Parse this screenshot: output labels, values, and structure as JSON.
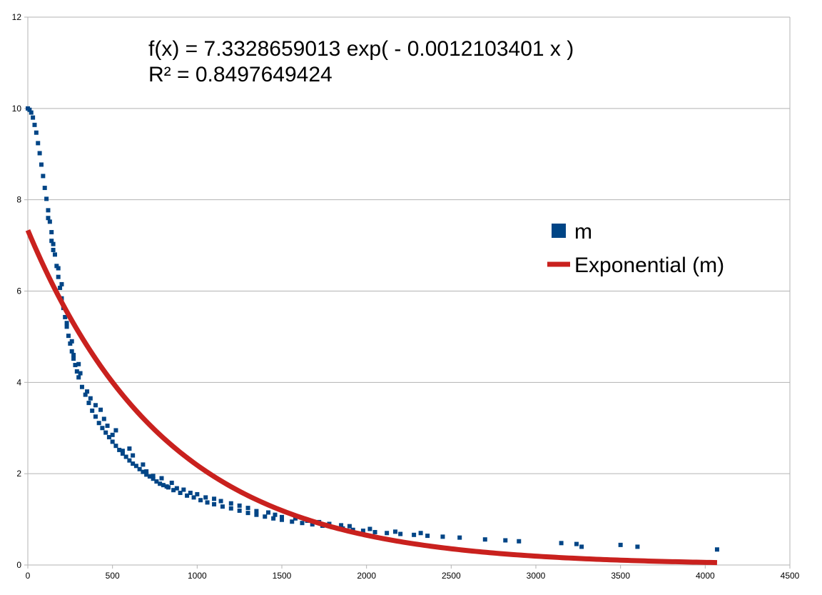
{
  "chart_data": {
    "type": "scatter",
    "title": "",
    "xlabel": "",
    "ylabel": "",
    "xlim": [
      0,
      4500
    ],
    "ylim": [
      0,
      12
    ],
    "x_ticks": [
      "0",
      "500",
      "1000",
      "1500",
      "2000",
      "2500",
      "3000",
      "3500",
      "4000",
      "4500"
    ],
    "y_ticks": [
      "0",
      "2",
      "4",
      "6",
      "8",
      "10",
      "12"
    ],
    "grid": "horizontal",
    "legend_position": "right",
    "colors": {
      "series": "#004586",
      "trend": "#c9211e",
      "grid": "#b3b3b3"
    },
    "equation": "f(x) = 7.3328659013 exp( - 0.0012103401 x )",
    "r_squared": "R² = 0.8497649424",
    "series": [
      {
        "name": "m",
        "points": [
          [
            0,
            10.0
          ],
          [
            10,
            9.97
          ],
          [
            20,
            9.91
          ],
          [
            30,
            9.8
          ],
          [
            40,
            9.64
          ],
          [
            50,
            9.47
          ],
          [
            60,
            9.24
          ],
          [
            70,
            9.02
          ],
          [
            80,
            8.77
          ],
          [
            90,
            8.52
          ],
          [
            100,
            8.26
          ],
          [
            110,
            8.02
          ],
          [
            120,
            7.77
          ],
          [
            130,
            7.52
          ],
          [
            140,
            7.29
          ],
          [
            150,
            7.03
          ],
          [
            160,
            6.8
          ],
          [
            170,
            6.55
          ],
          [
            180,
            6.31
          ],
          [
            190,
            6.07
          ],
          [
            200,
            5.84
          ],
          [
            210,
            5.63
          ],
          [
            220,
            5.43
          ],
          [
            230,
            5.22
          ],
          [
            240,
            5.02
          ],
          [
            250,
            4.85
          ],
          [
            260,
            4.68
          ],
          [
            270,
            4.52
          ],
          [
            280,
            4.38
          ],
          [
            290,
            4.24
          ],
          [
            300,
            4.11
          ],
          [
            320,
            3.9
          ],
          [
            340,
            3.73
          ],
          [
            360,
            3.55
          ],
          [
            380,
            3.38
          ],
          [
            400,
            3.25
          ],
          [
            420,
            3.11
          ],
          [
            440,
            3.0
          ],
          [
            460,
            2.9
          ],
          [
            480,
            2.8
          ],
          [
            500,
            2.7
          ],
          [
            520,
            2.61
          ],
          [
            540,
            2.52
          ],
          [
            560,
            2.44
          ],
          [
            580,
            2.37
          ],
          [
            600,
            2.29
          ],
          [
            620,
            2.22
          ],
          [
            640,
            2.17
          ],
          [
            660,
            2.1
          ],
          [
            680,
            2.04
          ],
          [
            700,
            1.98
          ],
          [
            720,
            1.94
          ],
          [
            740,
            1.89
          ],
          [
            760,
            1.83
          ],
          [
            780,
            1.78
          ],
          [
            800,
            1.75
          ],
          [
            830,
            1.7
          ],
          [
            860,
            1.64
          ],
          [
            900,
            1.58
          ],
          [
            940,
            1.52
          ],
          [
            980,
            1.48
          ],
          [
            1020,
            1.42
          ],
          [
            1060,
            1.37
          ],
          [
            1100,
            1.33
          ],
          [
            1150,
            1.28
          ],
          [
            1200,
            1.24
          ],
          [
            1250,
            1.19
          ],
          [
            1300,
            1.14
          ],
          [
            1350,
            1.1
          ],
          [
            1400,
            1.06
          ],
          [
            1450,
            1.02
          ],
          [
            1500,
            0.99
          ],
          [
            1560,
            0.95
          ],
          [
            1620,
            0.92
          ],
          [
            1680,
            0.89
          ],
          [
            1740,
            0.86
          ],
          [
            1800,
            0.83
          ],
          [
            1860,
            0.8
          ],
          [
            1920,
            0.77
          ],
          [
            1980,
            0.75
          ],
          [
            2050,
            0.72
          ],
          [
            2120,
            0.7
          ],
          [
            2200,
            0.68
          ],
          [
            2280,
            0.66
          ],
          [
            2360,
            0.64
          ],
          [
            2450,
            0.62
          ],
          [
            2550,
            0.6
          ],
          [
            2700,
            0.56
          ],
          [
            2820,
            0.54
          ],
          [
            2900,
            0.52
          ],
          [
            3150,
            0.48
          ],
          [
            3240,
            0.46
          ],
          [
            3270,
            0.4
          ],
          [
            3500,
            0.44
          ],
          [
            3600,
            0.4
          ],
          [
            4070,
            0.34
          ],
          [
            120,
            7.6
          ],
          [
            150,
            6.9
          ],
          [
            200,
            6.15
          ],
          [
            230,
            5.3
          ],
          [
            270,
            4.6
          ],
          [
            300,
            4.4
          ],
          [
            350,
            3.8
          ],
          [
            400,
            3.5
          ],
          [
            430,
            3.4
          ],
          [
            470,
            3.05
          ],
          [
            500,
            2.85
          ],
          [
            560,
            2.5
          ],
          [
            600,
            2.55
          ],
          [
            680,
            2.2
          ],
          [
            740,
            1.95
          ],
          [
            790,
            1.9
          ],
          [
            850,
            1.8
          ],
          [
            920,
            1.65
          ],
          [
            1000,
            1.55
          ],
          [
            1100,
            1.45
          ],
          [
            1200,
            1.35
          ],
          [
            1300,
            1.25
          ],
          [
            1420,
            1.15
          ],
          [
            1500,
            1.05
          ],
          [
            1650,
            0.97
          ],
          [
            1780,
            0.9
          ],
          [
            1900,
            0.85
          ],
          [
            2020,
            0.79
          ],
          [
            2170,
            0.73
          ],
          [
            2320,
            0.7
          ],
          [
            140,
            7.1
          ],
          [
            180,
            6.5
          ],
          [
            260,
            4.9
          ],
          [
            310,
            4.2
          ],
          [
            370,
            3.65
          ],
          [
            450,
            3.2
          ],
          [
            520,
            2.95
          ],
          [
            620,
            2.4
          ],
          [
            700,
            2.05
          ],
          [
            820,
            1.72
          ],
          [
            880,
            1.68
          ],
          [
            960,
            1.58
          ],
          [
            1050,
            1.48
          ],
          [
            1140,
            1.4
          ],
          [
            1250,
            1.3
          ],
          [
            1350,
            1.18
          ],
          [
            1460,
            1.1
          ],
          [
            1580,
            1.02
          ],
          [
            1720,
            0.94
          ],
          [
            1850,
            0.87
          ]
        ]
      }
    ],
    "trendline": {
      "name": "Exponential (m)",
      "type": "exponential",
      "a": 7.3328659013,
      "b": -0.0012103401,
      "x_range": [
        0,
        4070
      ]
    }
  }
}
